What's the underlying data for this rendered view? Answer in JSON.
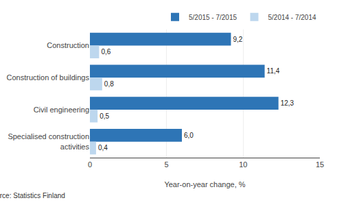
{
  "chart_data": {
    "type": "bar",
    "orientation": "horizontal",
    "categories": [
      "Construction",
      "Construction of buildings",
      "Civil engineering",
      "Specialised construction\nactivities"
    ],
    "series": [
      {
        "name": "5/2015 - 7/2015",
        "color": "#2E75B6",
        "values": [
          9.2,
          11.4,
          12.3,
          6.0
        ],
        "value_labels": [
          "9,2",
          "11,4",
          "12,3",
          "6,0"
        ]
      },
      {
        "name": "5/2014 - 7/2014",
        "color": "#BDD7EE",
        "values": [
          0.6,
          0.8,
          0.5,
          0.4
        ],
        "value_labels": [
          "0,6",
          "0,8",
          "0,5",
          "0,4"
        ]
      }
    ],
    "xlabel": "Year-on-year change, %",
    "xlim": [
      0,
      15
    ],
    "xticks": [
      0,
      5,
      10,
      15
    ],
    "grid": true,
    "legend": "upper right",
    "data_labels": true,
    "annotations": [
      "Source: Statistics Finland"
    ]
  }
}
